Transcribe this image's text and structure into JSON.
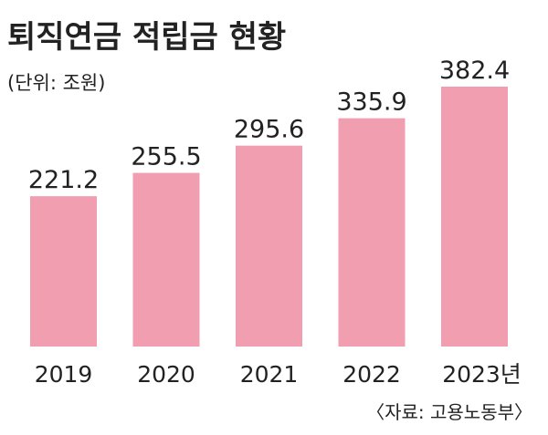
{
  "chart_data": {
    "type": "bar",
    "title": "퇴직연금 적립금 현황",
    "unit": "(단위: 조원)",
    "categories": [
      "2019",
      "2020",
      "2021",
      "2022",
      "2023년"
    ],
    "values": [
      221.2,
      255.5,
      295.6,
      335.9,
      382.4
    ],
    "value_labels": [
      "221.2",
      "255.5",
      "295.6",
      "335.9",
      "382.4"
    ],
    "source": "〈자료: 고용노동부〉",
    "xlabel": "",
    "ylabel": "",
    "ylim": [
      0,
      382.4
    ],
    "grid": false,
    "colors": {
      "bar": "#f09eb0",
      "text": "#222222",
      "background": "#ffffff"
    }
  }
}
